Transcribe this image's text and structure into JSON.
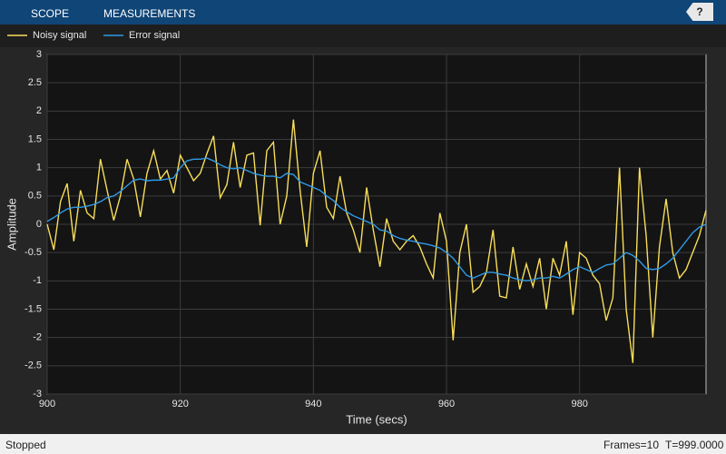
{
  "toolbar": {
    "tabs": [
      "SCOPE",
      "MEASUREMENTS"
    ],
    "help": "?"
  },
  "status": {
    "state": "Stopped",
    "frames": "Frames=10",
    "time": "T=999.0000"
  },
  "chart_data": {
    "type": "line",
    "xlabel": "Time (secs)",
    "ylabel": "Amplitude",
    "x": [
      900,
      901,
      902,
      903,
      904,
      905,
      906,
      907,
      908,
      909,
      910,
      911,
      912,
      913,
      914,
      915,
      916,
      917,
      918,
      919,
      920,
      921,
      922,
      923,
      924,
      925,
      926,
      927,
      928,
      929,
      930,
      931,
      932,
      933,
      934,
      935,
      936,
      937,
      938,
      939,
      940,
      941,
      942,
      943,
      944,
      945,
      946,
      947,
      948,
      949,
      950,
      951,
      952,
      953,
      954,
      955,
      956,
      957,
      958,
      959,
      960,
      961,
      962,
      963,
      964,
      965,
      966,
      967,
      968,
      969,
      970,
      971,
      972,
      973,
      974,
      975,
      976,
      977,
      978,
      979,
      980,
      981,
      982,
      983,
      984,
      985,
      986,
      987,
      988,
      989,
      990,
      991,
      992,
      993,
      994,
      995,
      996,
      997,
      998,
      999
    ],
    "series": [
      {
        "name": "Noisy signal",
        "color": "#f7dd5a",
        "values": [
          0,
          -0.45,
          0.4,
          0.72,
          -0.3,
          0.6,
          0.2,
          0.1,
          1.15,
          0.6,
          0.07,
          0.5,
          1.15,
          0.8,
          0.13,
          0.9,
          1.3,
          0.8,
          0.95,
          0.55,
          1.22,
          1.0,
          0.77,
          0.9,
          1.25,
          1.56,
          0.47,
          0.7,
          1.45,
          0.65,
          1.22,
          1.26,
          -0.02,
          1.3,
          1.45,
          0,
          0.5,
          1.85,
          0.6,
          -0.4,
          0.9,
          1.3,
          0.3,
          0.1,
          0.85,
          0.2,
          -0.1,
          -0.5,
          0.65,
          -0.1,
          -0.75,
          0.1,
          -0.3,
          -0.45,
          -0.3,
          -0.2,
          -0.4,
          -0.7,
          -0.95,
          0.2,
          -0.3,
          -2.05,
          -0.5,
          0,
          -1.2,
          -1.1,
          -0.85,
          -0.1,
          -1.27,
          -1.3,
          -0.4,
          -1.15,
          -0.7,
          -1.1,
          -0.6,
          -1.5,
          -0.6,
          -0.9,
          -0.3,
          -1.6,
          -0.5,
          -0.6,
          -0.9,
          -1.05,
          -1.7,
          -1.3,
          1.0,
          -1.5,
          -2.45,
          1.0,
          -0.2,
          -2.0,
          -0.4,
          0.45,
          -0.5,
          -0.95,
          -0.8,
          -0.5,
          -0.2,
          0.25
        ]
      },
      {
        "name": "Error signal",
        "color": "#2f9ae6",
        "values": [
          0.05,
          0.12,
          0.2,
          0.27,
          0.3,
          0.3,
          0.32,
          0.35,
          0.4,
          0.47,
          0.5,
          0.58,
          0.68,
          0.78,
          0.8,
          0.77,
          0.78,
          0.78,
          0.8,
          0.82,
          1.0,
          1.12,
          1.15,
          1.15,
          1.17,
          1.12,
          1.05,
          1.0,
          0.98,
          1.0,
          0.95,
          0.9,
          0.87,
          0.85,
          0.85,
          0.82,
          0.9,
          0.88,
          0.75,
          0.7,
          0.65,
          0.6,
          0.5,
          0.42,
          0.3,
          0.22,
          0.15,
          0.1,
          0.05,
          0,
          -0.1,
          -0.12,
          -0.2,
          -0.25,
          -0.28,
          -0.3,
          -0.33,
          -0.35,
          -0.38,
          -0.42,
          -0.5,
          -0.6,
          -0.75,
          -0.9,
          -0.95,
          -0.9,
          -0.85,
          -0.85,
          -0.88,
          -0.9,
          -0.95,
          -0.98,
          -1.0,
          -0.98,
          -0.95,
          -0.95,
          -0.92,
          -0.95,
          -0.88,
          -0.8,
          -0.75,
          -0.8,
          -0.85,
          -0.78,
          -0.72,
          -0.7,
          -0.6,
          -0.5,
          -0.55,
          -0.65,
          -0.78,
          -0.8,
          -0.78,
          -0.7,
          -0.6,
          -0.45,
          -0.3,
          -0.15,
          -0.05,
          0
        ]
      }
    ],
    "xlim": [
      900,
      999
    ],
    "xticks": [
      900,
      920,
      940,
      960,
      980
    ],
    "ylim": [
      -3,
      3
    ],
    "yticks": [
      -3,
      -2.5,
      -2,
      -1.5,
      -1,
      -0.5,
      0,
      0.5,
      1,
      1.5,
      2,
      2.5,
      3
    ],
    "grid": true
  }
}
